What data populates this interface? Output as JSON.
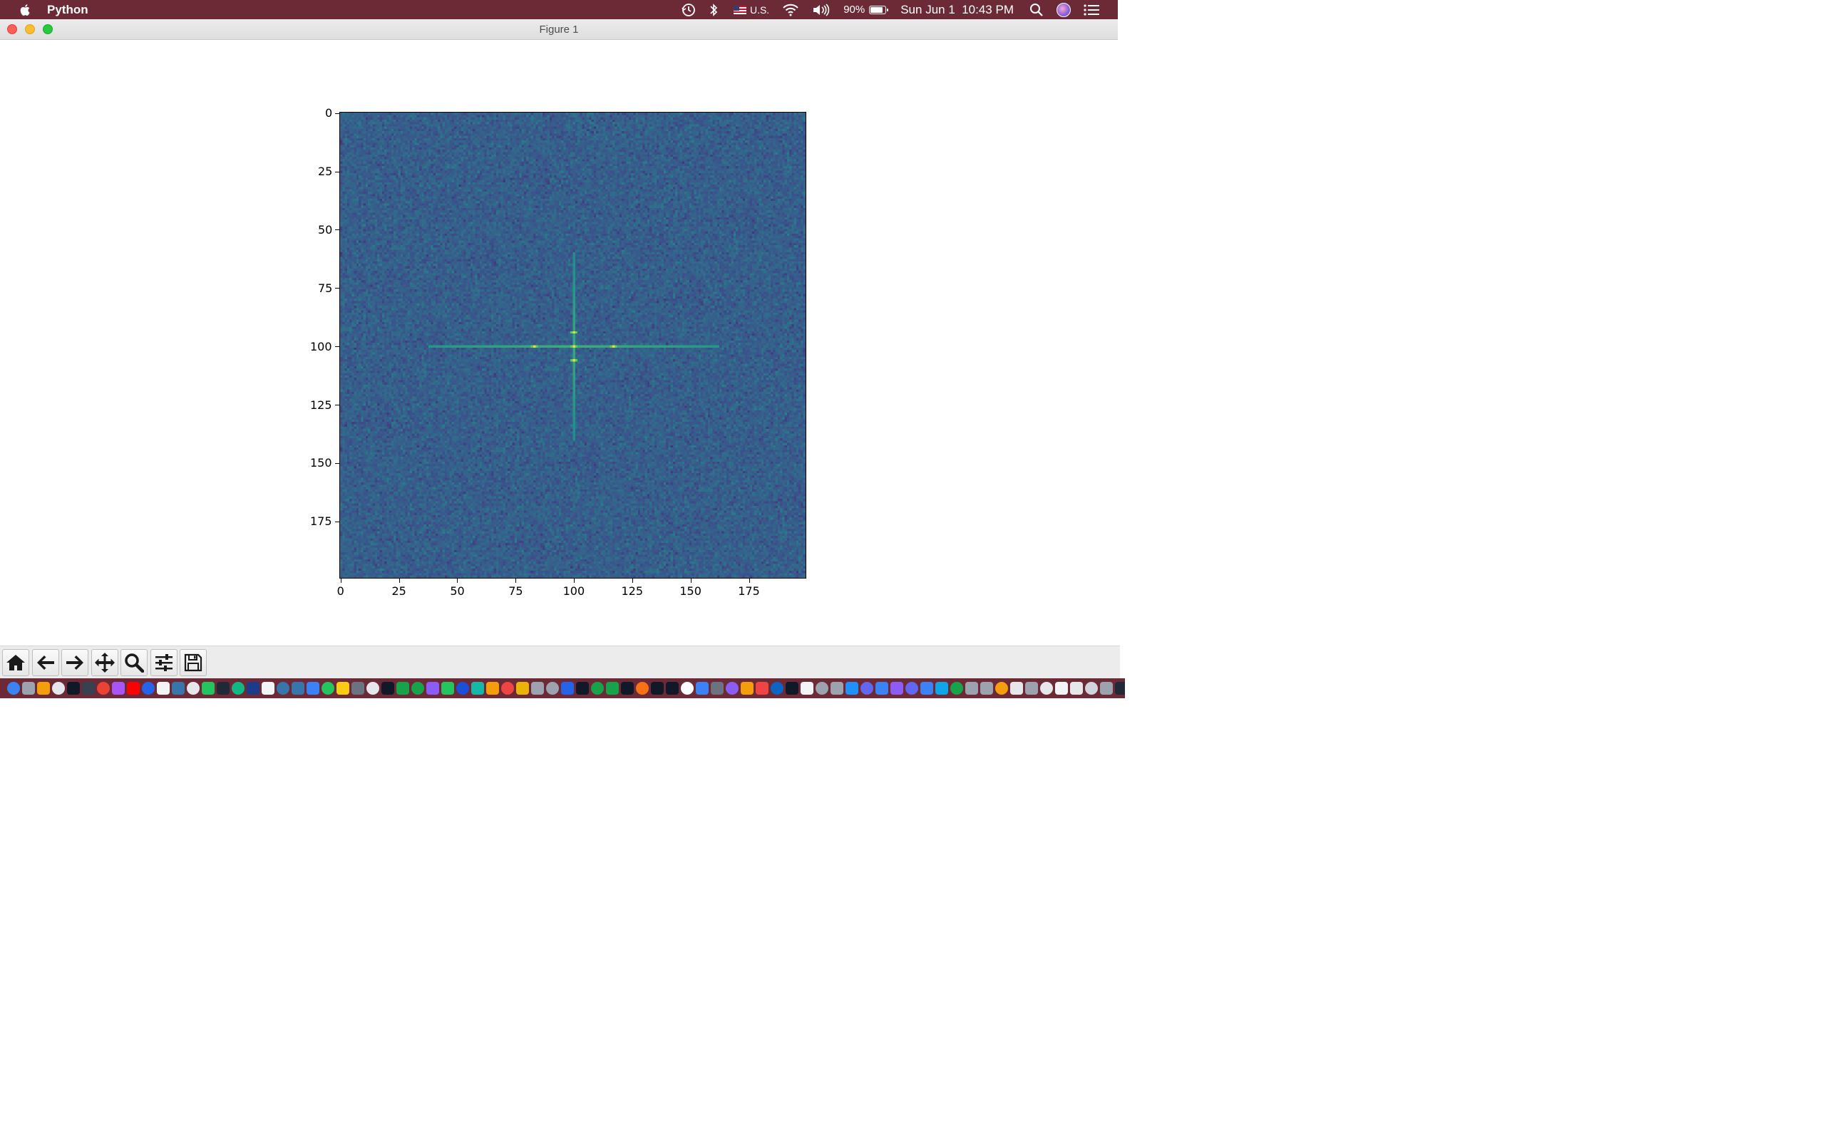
{
  "menubar": {
    "app_name": "Python",
    "keyboard_input": "U.S.",
    "battery_percent": "90%",
    "battery_level": 0.9,
    "datetime": "Sun Jun 1  10:43 PM",
    "icons": [
      "apple-icon",
      "time-machine-icon",
      "bluetooth-icon",
      "flag-icon",
      "wifi-icon",
      "volume-icon",
      "battery-icon",
      "search-icon",
      "siri-icon",
      "notification-center-icon"
    ]
  },
  "window": {
    "title": "Figure 1"
  },
  "chart_data": {
    "type": "heatmap",
    "title": "",
    "xlabel": "",
    "ylabel": "",
    "shape": [
      200,
      200
    ],
    "xlim": [
      0,
      199
    ],
    "ylim": [
      199,
      0
    ],
    "xticks": [
      "0",
      "25",
      "50",
      "75",
      "100",
      "125",
      "150",
      "175"
    ],
    "yticks": [
      "0",
      "25",
      "50",
      "75",
      "100",
      "125",
      "150",
      "175"
    ],
    "colormap": "viridis",
    "grid": false,
    "description_of_content": "",
    "features": {
      "center": [
        100,
        100
      ],
      "horizontal_line_extent": [
        38,
        162
      ],
      "vertical_line_extent": [
        60,
        140
      ],
      "bright_points": [
        [
          83,
          100
        ],
        [
          117,
          100
        ],
        [
          100,
          94
        ],
        [
          100,
          106
        ],
        [
          100,
          100
        ]
      ]
    }
  },
  "toolbar": {
    "buttons": [
      "home-icon",
      "back-arrow-icon",
      "forward-arrow-icon",
      "pan-icon",
      "zoom-icon",
      "configure-subplots-icon",
      "save-icon"
    ]
  },
  "dock": {
    "colors": [
      "#3b82f6",
      "#9ca3af",
      "#f59e0b",
      "#e5e7eb",
      "#111827",
      "#374151",
      "#ea4335",
      "#a855f7",
      "#ff0000",
      "#2563eb",
      "#f3f4f6",
      "#3776ab",
      "#e5e7eb",
      "#22c55e",
      "#1f2937",
      "#10b981",
      "#1e3a8a",
      "#f3f4f6",
      "#3776ab",
      "#3776ab",
      "#3b82f6",
      "#22c55e",
      "#facc15",
      "#6b7280",
      "#e5e7eb",
      "#111827",
      "#16a34a",
      "#16a34a",
      "#8b5cf6",
      "#22c55e",
      "#1d4ed8",
      "#14b8a6",
      "#f59e0b",
      "#ef4444",
      "#eab308",
      "#9ca3af",
      "#9ca3af",
      "#2563eb",
      "#111827",
      "#16a34a",
      "#16a34a",
      "#111827",
      "#f97316",
      "#111827",
      "#111827",
      "#ffffff",
      "#3b82f6",
      "#6b7280",
      "#8b5cf6",
      "#f59e0b",
      "#ef4444",
      "#0a66c2",
      "#111827",
      "#f3f4f6",
      "#9ca3af",
      "#9ca3af",
      "#1e90ff",
      "#6366f1",
      "#3b82f6",
      "#8b5cf6",
      "#6366f1",
      "#3b82f6",
      "#0ea5e9",
      "#16a34a",
      "#9ca3af",
      "#9ca3af",
      "#f59e0b",
      "#e5e7eb",
      "#9ca3af",
      "#e5e7eb",
      "#f3f4f6",
      "#e5e7eb",
      "#d1d5db",
      "#9ca3af",
      "#1f2937",
      "#e5e7eb",
      "#e5e7eb",
      "#9ca3af",
      "#e5e7eb",
      "#111827",
      "#1f2937",
      "#111827",
      "#9ca3af",
      "#e5e7eb",
      "#d1d5db",
      "#6b7280",
      "#374151"
    ]
  }
}
